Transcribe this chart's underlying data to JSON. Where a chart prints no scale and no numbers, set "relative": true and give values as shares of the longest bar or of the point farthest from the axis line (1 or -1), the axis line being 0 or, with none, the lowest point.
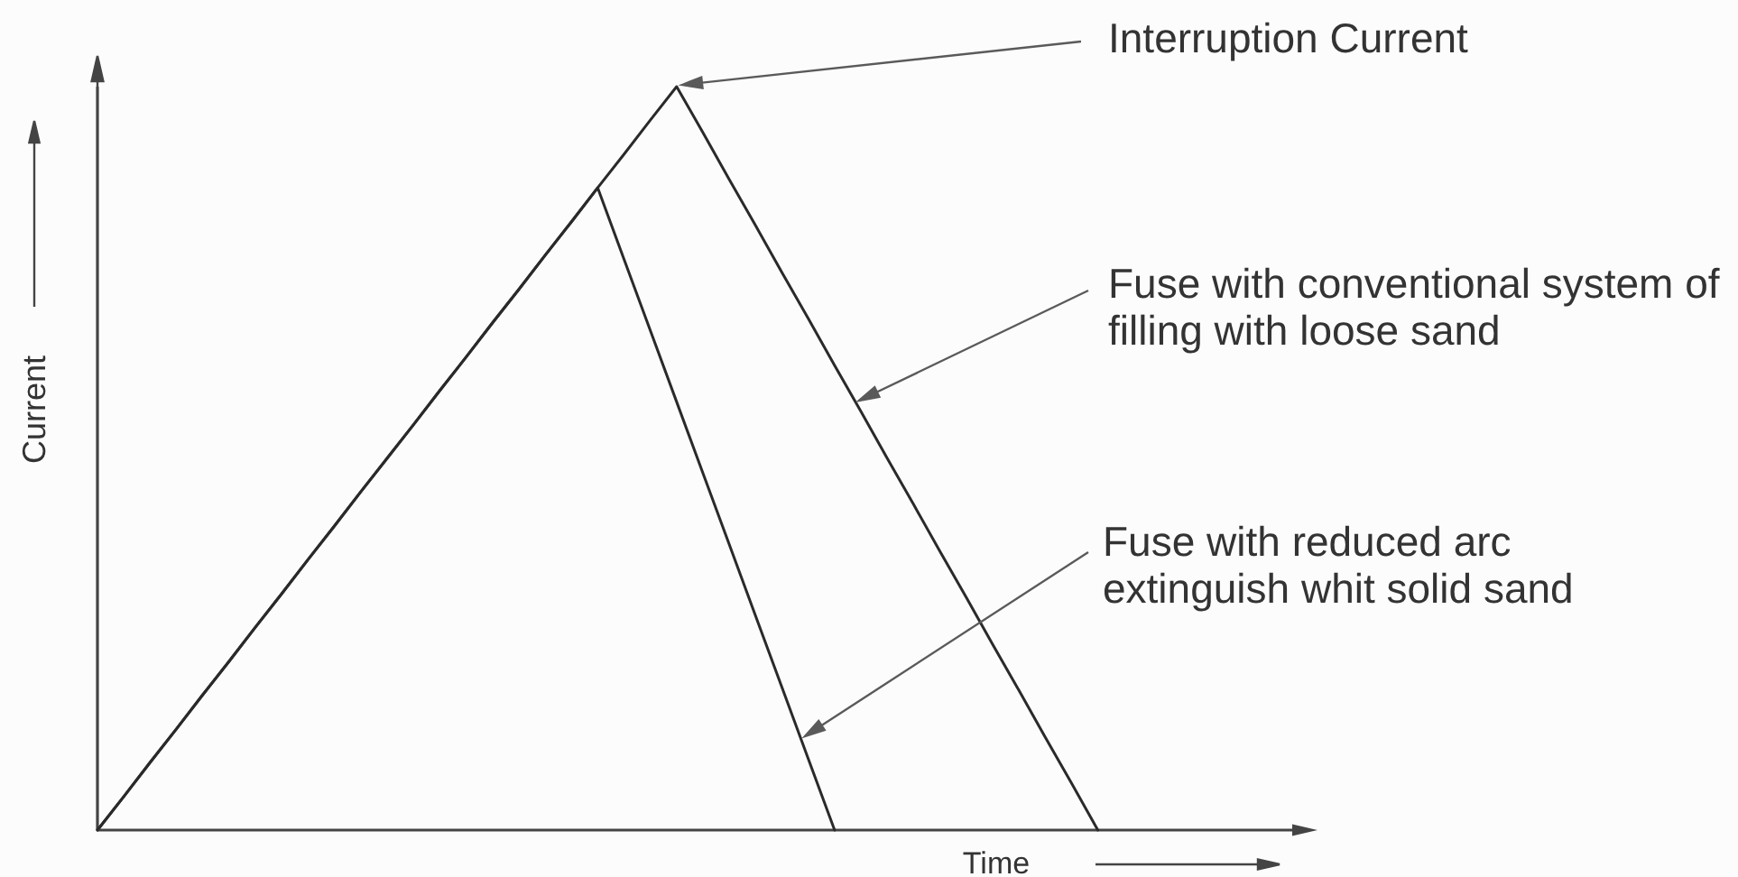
{
  "chart_data": {
    "type": "line",
    "relative": true,
    "xlabel": "Time",
    "ylabel": "Current",
    "categories": [
      null,
      null,
      null,
      null,
      null,
      null,
      null,
      null,
      null,
      null,
      null,
      null,
      null,
      null,
      null,
      null,
      null,
      null,
      null,
      null,
      null,
      null,
      null,
      null,
      null,
      null,
      null,
      null,
      null,
      null,
      null,
      null,
      null,
      null,
      null,
      null,
      null,
      null,
      null,
      null,
      null,
      null,
      null,
      null,
      null,
      null,
      null
    ],
    "series": [
      {
        "color": "#2a2a2a",
        "values": [
          0,
          0.045,
          0.091,
          0.136,
          0.182,
          0.227,
          0.273,
          0.318,
          0.364,
          0.409,
          0.455,
          0.5,
          0.545,
          0.591,
          0.636,
          0.682,
          0.727,
          0.773,
          0.818,
          0.864,
          0.909,
          0.955,
          1,
          0.938,
          0.875,
          0.813,
          0.75,
          0.688,
          0.625,
          0.563,
          0.5,
          0.438,
          0.375,
          0.313,
          0.25,
          0.188,
          0.125,
          0.063,
          0,
          null,
          null,
          null,
          null,
          null,
          null,
          null,
          null
        ]
      },
      {
        "color": "#2a2a2a",
        "values": [
          0,
          0.045,
          0.091,
          0.136,
          0.182,
          0.227,
          0.273,
          0.318,
          0.364,
          0.409,
          0.455,
          0.5,
          0.545,
          0.591,
          0.636,
          0.682,
          0.727,
          0.773,
          0.818,
          0.864,
          0.768,
          0.672,
          0.576,
          0.48,
          0.384,
          0.288,
          0.192,
          0.096,
          0,
          null,
          null,
          null,
          null,
          null,
          null,
          null,
          null,
          null,
          null,
          null,
          null,
          null,
          null,
          null,
          null,
          null,
          null
        ]
      }
    ],
    "annotations": [
      "Interruption Current",
      "Fuse with conventional system of\nfilling with loose sand",
      "Fuse with reduced arc\nextinguish whit solid sand"
    ]
  }
}
